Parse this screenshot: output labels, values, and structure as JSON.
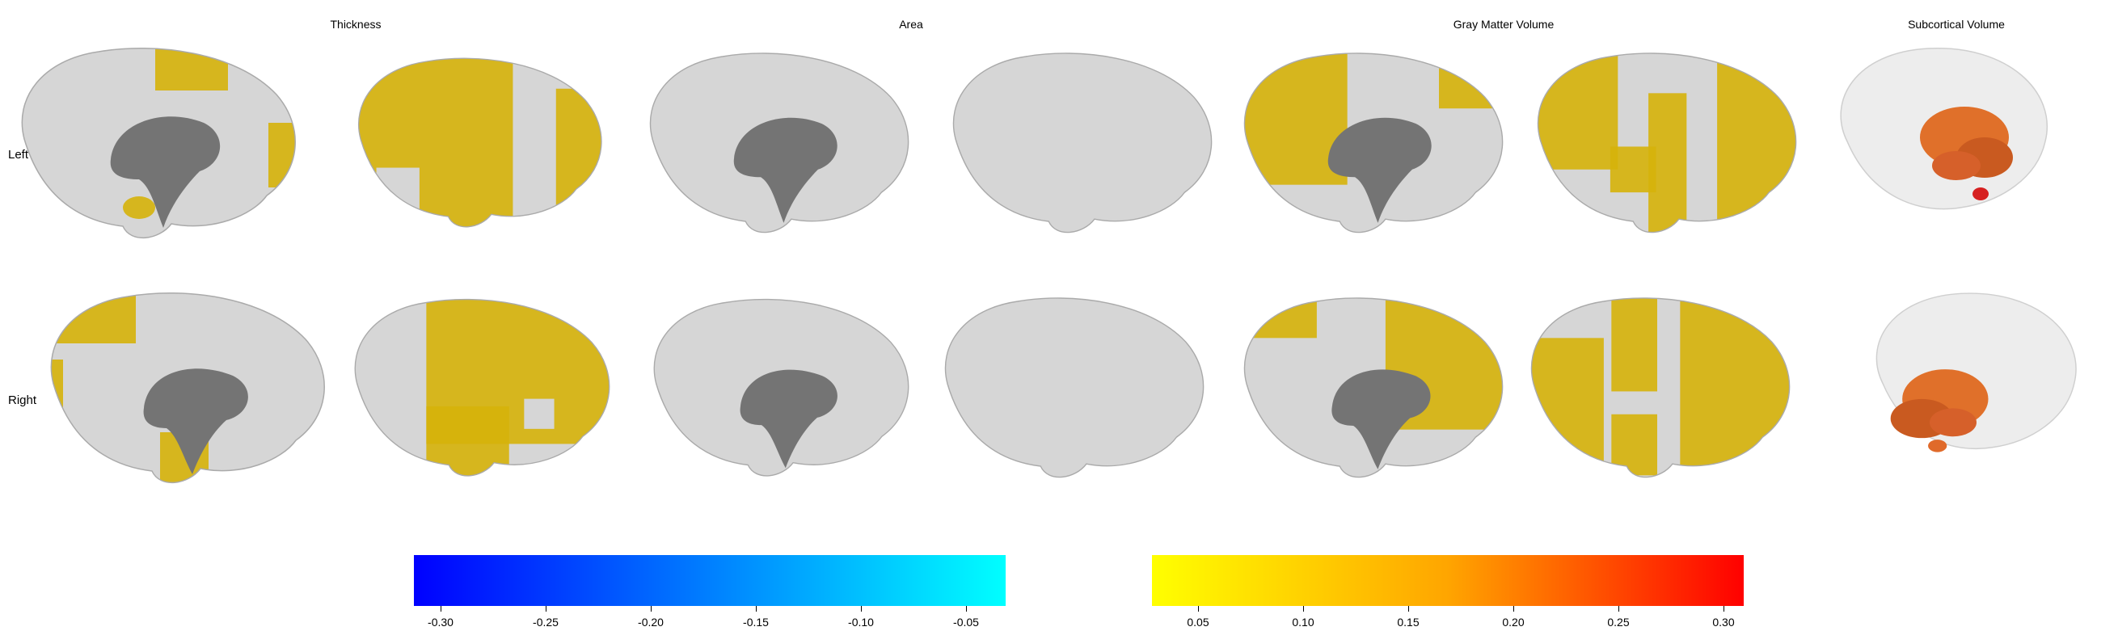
{
  "columns": {
    "thickness": "Thickness",
    "area": "Area",
    "gray_matter_volume": "Gray Matter Volume",
    "subcortical_volume": "Subcortical Volume"
  },
  "rows": {
    "left": "Left",
    "right": "Right"
  },
  "colors": {
    "cortex": "#d6d6d6",
    "medial_wall": "#747474",
    "highlight": "#d6b20a",
    "subcortical": "#e0702a",
    "subcortical_dark": "#c9401a"
  },
  "colorbars": {
    "negative": {
      "gradient": [
        "#0000ff",
        "#00ffff"
      ],
      "ticks": [
        "-0.30",
        "-0.25",
        "-0.20",
        "-0.15",
        "-0.10",
        "-0.05"
      ]
    },
    "positive": {
      "gradient": [
        "#ffff00",
        "#ffa500",
        "#ff0000"
      ],
      "ticks": [
        "0.05",
        "0.10",
        "0.15",
        "0.20",
        "0.25",
        "0.30"
      ]
    }
  }
}
